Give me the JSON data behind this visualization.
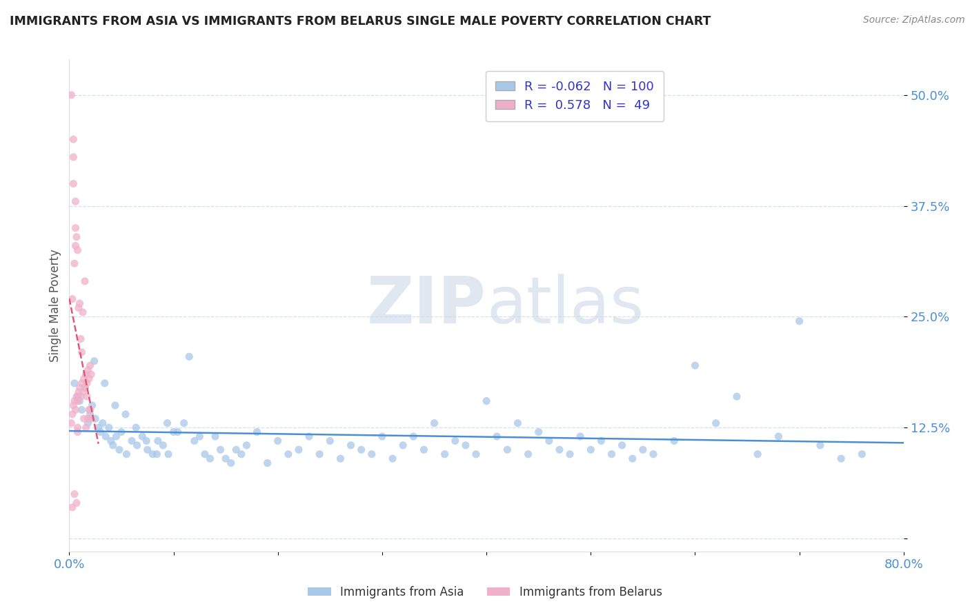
{
  "title": "IMMIGRANTS FROM ASIA VS IMMIGRANTS FROM BELARUS SINGLE MALE POVERTY CORRELATION CHART",
  "source": "Source: ZipAtlas.com",
  "ylabel": "Single Male Poverty",
  "watermark_line1": "ZIP",
  "watermark_line2": "atlas",
  "blue_R": -0.062,
  "blue_N": 100,
  "pink_R": 0.578,
  "pink_N": 49,
  "xlim": [
    0.0,
    0.8
  ],
  "ylim": [
    -0.015,
    0.54
  ],
  "yticks": [
    0.0,
    0.125,
    0.25,
    0.375,
    0.5
  ],
  "ytick_labels": [
    "",
    "12.5%",
    "25.0%",
    "37.5%",
    "50.0%"
  ],
  "xticks": [
    0.0,
    0.1,
    0.2,
    0.3,
    0.4,
    0.5,
    0.6,
    0.7,
    0.8
  ],
  "xtick_labels": [
    "0.0%",
    "",
    "",
    "",
    "",
    "",
    "",
    "",
    "80.0%"
  ],
  "blue_scatter_x": [
    0.005,
    0.008,
    0.01,
    0.012,
    0.015,
    0.018,
    0.02,
    0.022,
    0.025,
    0.028,
    0.03,
    0.032,
    0.035,
    0.038,
    0.04,
    0.042,
    0.045,
    0.048,
    0.05,
    0.055,
    0.06,
    0.065,
    0.07,
    0.075,
    0.08,
    0.085,
    0.09,
    0.095,
    0.1,
    0.11,
    0.12,
    0.13,
    0.14,
    0.15,
    0.16,
    0.17,
    0.18,
    0.19,
    0.2,
    0.21,
    0.22,
    0.23,
    0.24,
    0.25,
    0.26,
    0.27,
    0.28,
    0.29,
    0.3,
    0.31,
    0.32,
    0.33,
    0.34,
    0.35,
    0.36,
    0.37,
    0.38,
    0.39,
    0.4,
    0.41,
    0.42,
    0.43,
    0.44,
    0.45,
    0.46,
    0.47,
    0.48,
    0.49,
    0.5,
    0.51,
    0.52,
    0.53,
    0.54,
    0.55,
    0.56,
    0.58,
    0.6,
    0.62,
    0.64,
    0.66,
    0.68,
    0.7,
    0.72,
    0.74,
    0.76,
    0.024,
    0.034,
    0.044,
    0.054,
    0.064,
    0.074,
    0.084,
    0.094,
    0.104,
    0.115,
    0.125,
    0.135,
    0.145,
    0.155,
    0.165
  ],
  "blue_scatter_y": [
    0.175,
    0.16,
    0.155,
    0.145,
    0.17,
    0.13,
    0.14,
    0.15,
    0.135,
    0.125,
    0.12,
    0.13,
    0.115,
    0.125,
    0.11,
    0.105,
    0.115,
    0.1,
    0.12,
    0.095,
    0.11,
    0.105,
    0.115,
    0.1,
    0.095,
    0.11,
    0.105,
    0.095,
    0.12,
    0.13,
    0.11,
    0.095,
    0.115,
    0.09,
    0.1,
    0.105,
    0.12,
    0.085,
    0.11,
    0.095,
    0.1,
    0.115,
    0.095,
    0.11,
    0.09,
    0.105,
    0.1,
    0.095,
    0.115,
    0.09,
    0.105,
    0.115,
    0.1,
    0.13,
    0.095,
    0.11,
    0.105,
    0.095,
    0.155,
    0.115,
    0.1,
    0.13,
    0.095,
    0.12,
    0.11,
    0.1,
    0.095,
    0.115,
    0.1,
    0.11,
    0.095,
    0.105,
    0.09,
    0.1,
    0.095,
    0.11,
    0.195,
    0.13,
    0.16,
    0.095,
    0.115,
    0.245,
    0.105,
    0.09,
    0.095,
    0.2,
    0.175,
    0.15,
    0.14,
    0.125,
    0.11,
    0.095,
    0.13,
    0.12,
    0.205,
    0.115,
    0.09,
    0.1,
    0.085,
    0.095
  ],
  "pink_scatter_x": [
    0.002,
    0.003,
    0.004,
    0.005,
    0.006,
    0.007,
    0.008,
    0.009,
    0.01,
    0.011,
    0.012,
    0.013,
    0.014,
    0.015,
    0.016,
    0.017,
    0.018,
    0.019,
    0.02,
    0.021,
    0.003,
    0.005,
    0.007,
    0.009,
    0.011,
    0.013,
    0.015,
    0.017,
    0.019,
    0.021,
    0.004,
    0.006,
    0.008,
    0.004,
    0.006,
    0.008,
    0.01,
    0.012,
    0.014,
    0.016,
    0.018,
    0.02,
    0.003,
    0.005,
    0.007,
    0.002,
    0.004,
    0.006,
    0.008
  ],
  "pink_scatter_y": [
    0.13,
    0.14,
    0.15,
    0.155,
    0.145,
    0.16,
    0.155,
    0.165,
    0.17,
    0.16,
    0.175,
    0.165,
    0.18,
    0.17,
    0.185,
    0.175,
    0.19,
    0.18,
    0.195,
    0.185,
    0.27,
    0.31,
    0.34,
    0.26,
    0.225,
    0.255,
    0.29,
    0.16,
    0.145,
    0.135,
    0.4,
    0.35,
    0.125,
    0.45,
    0.38,
    0.325,
    0.265,
    0.21,
    0.135,
    0.125,
    0.135,
    0.145,
    0.035,
    0.05,
    0.04,
    0.5,
    0.43,
    0.33,
    0.12
  ],
  "blue_color": "#a8c8e8",
  "pink_color": "#f0b0c8",
  "blue_line_color": "#4a8fd4",
  "pink_line_color": "#e05878",
  "title_color": "#222222",
  "tick_label_color": "#4a8fd4",
  "grid_color": "#c8d8e8",
  "background_color": "#ffffff",
  "legend_R_color": "#3333cc",
  "watermark_color": "#ccd8e8",
  "scatter_size": 65,
  "scatter_alpha": 0.75,
  "line_width": 1.8
}
